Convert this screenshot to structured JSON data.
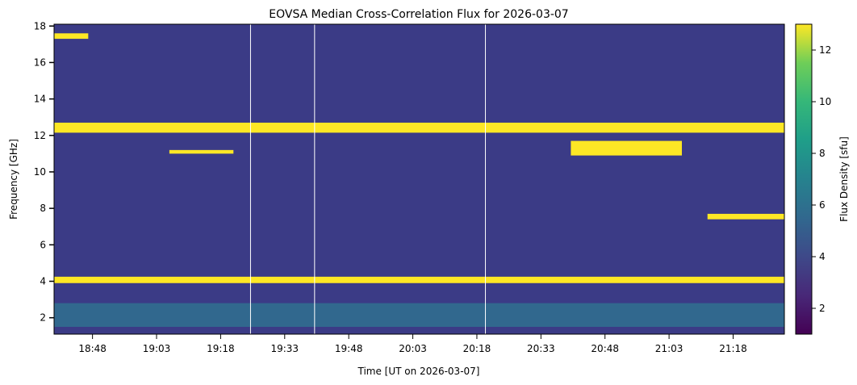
{
  "chart_data": {
    "type": "heatmap",
    "title": "EOVSA Median Cross-Correlation Flux for 2026-03-07",
    "xlabel": "Time [UT on 2026-03-07]",
    "ylabel": "Frequency [GHz]",
    "colorbar_label": "Flux Density [sfu]",
    "colormap": "viridis",
    "x_range": [
      "18:39",
      "21:30"
    ],
    "ylim": [
      1.1,
      18.1
    ],
    "clim": [
      1,
      13
    ],
    "x_ticks": [
      "18:48",
      "19:03",
      "19:18",
      "19:33",
      "19:48",
      "20:03",
      "20:18",
      "20:33",
      "20:48",
      "21:03",
      "21:18"
    ],
    "y_ticks": [
      2,
      4,
      6,
      8,
      10,
      12,
      14,
      16,
      18
    ],
    "colorbar_ticks": [
      2,
      4,
      6,
      8,
      10,
      12
    ],
    "bands": [
      {
        "t_start": "18:39",
        "t_end": "21:30",
        "f_low": 12.15,
        "f_high": 12.7,
        "flux": 13
      },
      {
        "t_start": "18:39",
        "t_end": "21:30",
        "f_low": 3.9,
        "f_high": 4.25,
        "flux": 13
      },
      {
        "t_start": "18:39",
        "t_end": "21:30",
        "f_low": 1.5,
        "f_high": 2.8,
        "flux": 5
      },
      {
        "t_start": "21:12",
        "t_end": "21:30",
        "f_low": 7.4,
        "f_high": 7.7,
        "flux": 13
      },
      {
        "t_start": "20:40",
        "t_end": "21:06",
        "f_low": 10.9,
        "f_high": 11.7,
        "flux": 13
      },
      {
        "t_start": "19:06",
        "t_end": "19:21",
        "f_low": 11.0,
        "f_high": 11.2,
        "flux": 13
      },
      {
        "t_start": "18:39",
        "t_end": "18:47",
        "f_low": 17.3,
        "f_high": 17.6,
        "flux": 13
      }
    ],
    "vertical_lines": [
      "19:25",
      "19:40",
      "20:20"
    ]
  }
}
